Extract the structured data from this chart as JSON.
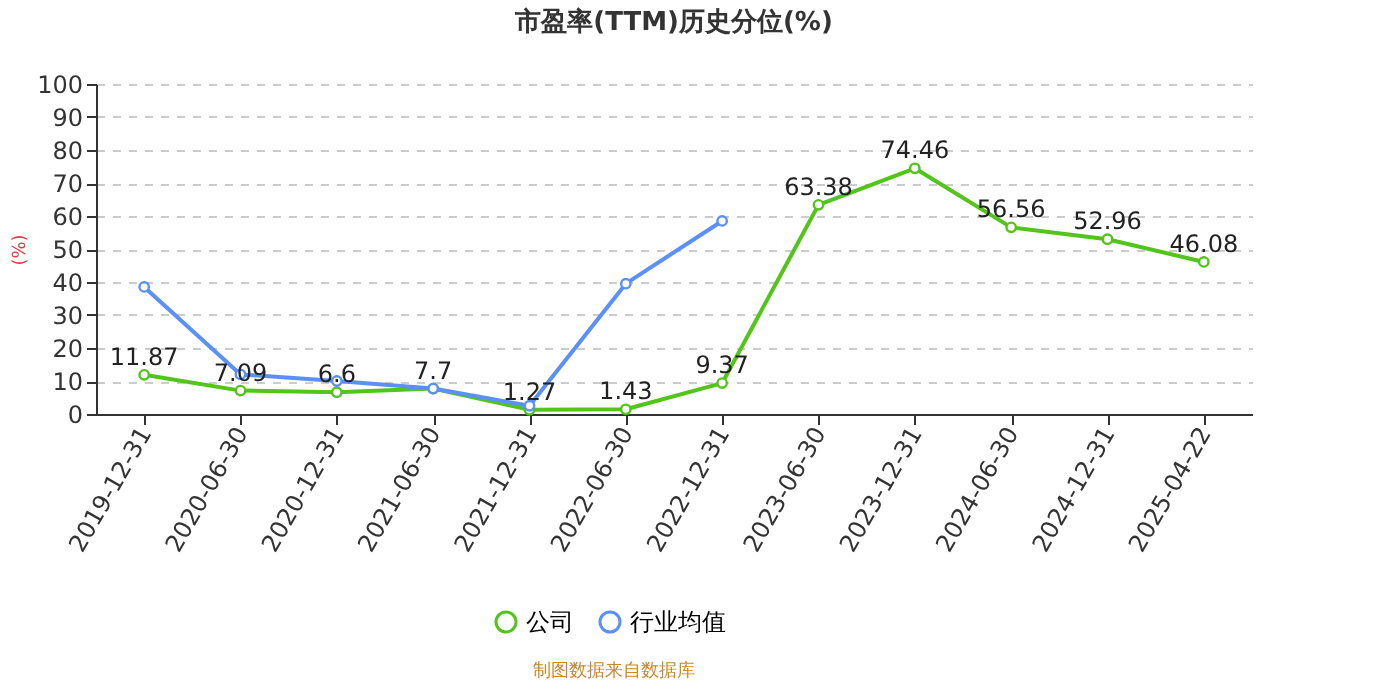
{
  "chart_data": {
    "type": "line",
    "title": "市盈率(TTM)历史分位(%)",
    "ylabel": "(%)",
    "categories": [
      "2019-12-31",
      "2020-06-30",
      "2020-12-31",
      "2021-06-30",
      "2021-12-31",
      "2022-06-30",
      "2022-12-31",
      "2023-06-30",
      "2023-12-31",
      "2024-06-30",
      "2024-12-31",
      "2025-04-22"
    ],
    "series": [
      {
        "name": "公司",
        "color": "#52c41a",
        "values": [
          11.87,
          7.09,
          6.6,
          7.7,
          1.27,
          1.43,
          9.37,
          63.38,
          74.46,
          56.56,
          52.96,
          46.08
        ],
        "value_labels": [
          "11.87",
          "7.09",
          "6.6",
          "7.7",
          "1.27",
          "1.43",
          "9.37",
          "63.38",
          "74.46",
          "56.56",
          "52.96",
          "46.08"
        ]
      },
      {
        "name": "行业均值",
        "color": "#5b8ff9",
        "values": [
          38.5,
          12,
          10,
          7.7,
          2.5,
          39.5,
          58.5,
          null,
          null,
          null,
          null,
          null
        ]
      }
    ],
    "ylim": [
      0,
      100
    ],
    "yticks": [
      0,
      10,
      20,
      30,
      40,
      50,
      60,
      70,
      80,
      90,
      100
    ],
    "grid": "y",
    "legend": "bottom",
    "marker": "circle",
    "line_style": "solid",
    "annotations": [
      "制图数据来自数据库"
    ]
  }
}
